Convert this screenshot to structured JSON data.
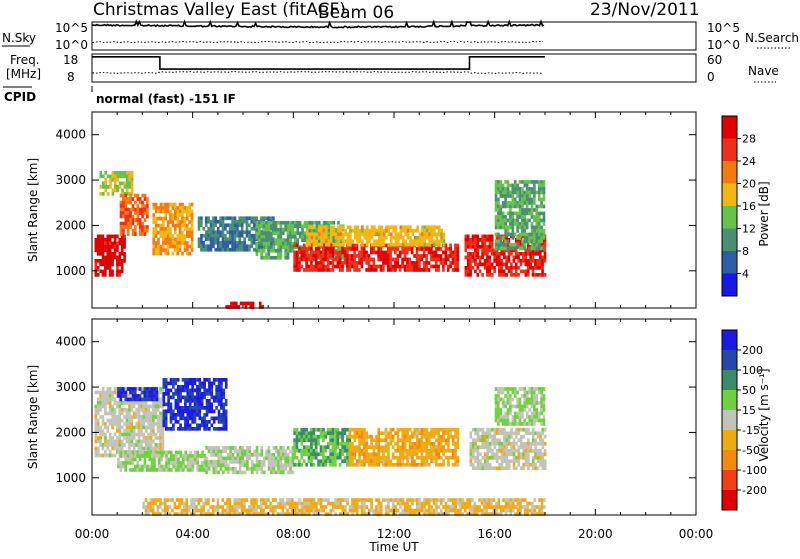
{
  "header": {
    "title": "Christmas Valley East (fitACF)",
    "beam": "Beam 06",
    "date": "23/Nov/2011"
  },
  "top_panels": {
    "nsky_label": "N.Sky",
    "nsky_ticks": [
      "10^5",
      "10^0"
    ],
    "nsearch_label": "N.Search",
    "nsearch_ticks": [
      "10^5",
      "10^0"
    ],
    "freq_label_line1": "Freq.",
    "freq_label_line2": "[MHz]",
    "freq_ticks": [
      "18",
      "8"
    ],
    "nave_label": "Nave",
    "nave_ticks": [
      "60",
      "0"
    ],
    "cpid_label": "CPID",
    "cpid_text": "normal (fast) -151 IF"
  },
  "axes": {
    "ylabel": "Slant Range [km]",
    "xlabel": "Time UT",
    "yticks": [
      "1000",
      "2000",
      "3000",
      "4000"
    ],
    "xticks": [
      "00:00",
      "04:00",
      "08:00",
      "12:00",
      "16:00",
      "20:00",
      "00:00"
    ]
  },
  "colorbars": {
    "power_title": "Power [dB]",
    "power_ticks": [
      "4",
      "8",
      "12",
      "16",
      "20",
      "24",
      "28"
    ],
    "power_colors": [
      "#1717e8",
      "#2c5ea8",
      "#4b8f72",
      "#66c24a",
      "#f3b614",
      "#f4790f",
      "#ee2f1a",
      "#e00000"
    ],
    "velocity_title": "Velocity [m s⁻¹]",
    "velocity_ticks": [
      "-200",
      "-100",
      "-50",
      "-15",
      "15",
      "50",
      "100",
      "200"
    ],
    "velocity_colors": [
      "#e00000",
      "#f23e12",
      "#f28a10",
      "#efab12",
      "#c4c3b8",
      "#6fd13f",
      "#3a8a6e",
      "#2547a9",
      "#1b1be3"
    ]
  },
  "chart_data": [
    {
      "type": "line",
      "panel": "N.Sky / N.Search",
      "x_range_hours": [
        0,
        24
      ],
      "series": [
        {
          "name": "N.Sky",
          "x": [
            0,
            4,
            8,
            12,
            16,
            18
          ],
          "values": [
            100000,
            60000,
            40000,
            40000,
            80000,
            100000
          ]
        }
      ]
    },
    {
      "type": "line",
      "panel": "Freq. / Nave",
      "x_range_hours": [
        0,
        24
      ],
      "ylim": [
        8,
        18
      ],
      "series": [
        {
          "name": "Freq.",
          "x": [
            0,
            2.7,
            2.7,
            15,
            15,
            18
          ],
          "values": [
            17,
            17,
            12.6,
            12.6,
            17,
            17
          ]
        }
      ]
    },
    {
      "type": "heatmap",
      "title": "Power [dB]",
      "xlabel": "Time UT",
      "ylabel": "Slant Range [km]",
      "x_range_hours": [
        0,
        24
      ],
      "ylim": [
        180,
        4500
      ],
      "clim": [
        0,
        32
      ],
      "regions": [
        {
          "x": [
            0.1,
            1.3
          ],
          "y": [
            900,
            1800
          ],
          "value": 30
        },
        {
          "x": [
            0.3,
            1.6
          ],
          "y": [
            2700,
            3200
          ],
          "value": 16
        },
        {
          "x": [
            1.1,
            2.2
          ],
          "y": [
            1800,
            2700
          ],
          "value": 24
        },
        {
          "x": [
            2.4,
            4.0
          ],
          "y": [
            1400,
            2500
          ],
          "value": 20
        },
        {
          "x": [
            4.2,
            7.2
          ],
          "y": [
            1500,
            2200
          ],
          "value": 8
        },
        {
          "x": [
            6.5,
            10.0
          ],
          "y": [
            1300,
            2100
          ],
          "value": 12
        },
        {
          "x": [
            8.0,
            14.5
          ],
          "y": [
            1000,
            1600
          ],
          "value": 28
        },
        {
          "x": [
            8.5,
            14.0
          ],
          "y": [
            1600,
            2000
          ],
          "value": 18
        },
        {
          "x": [
            14.8,
            18.0
          ],
          "y": [
            900,
            1800
          ],
          "value": 28
        },
        {
          "x": [
            16.0,
            18.0
          ],
          "y": [
            1500,
            3000
          ],
          "value": 12
        },
        {
          "x": [
            5.3,
            6.8
          ],
          "y": [
            180,
            320
          ],
          "value": 30
        }
      ]
    },
    {
      "type": "heatmap",
      "title": "Velocity [m s⁻¹]",
      "xlabel": "Time UT",
      "ylabel": "Slant Range [km]",
      "x_range_hours": [
        0,
        24
      ],
      "ylim": [
        180,
        4500
      ],
      "clim": [
        -250,
        250
      ],
      "regions": [
        {
          "x": [
            0.1,
            2.8
          ],
          "y": [
            1500,
            3000
          ],
          "value": 0
        },
        {
          "x": [
            1.0,
            2.6
          ],
          "y": [
            2700,
            3000
          ],
          "value": 200
        },
        {
          "x": [
            2.8,
            5.3
          ],
          "y": [
            2100,
            3200
          ],
          "value": 200
        },
        {
          "x": [
            1.0,
            4.5
          ],
          "y": [
            1200,
            1600
          ],
          "value": 40
        },
        {
          "x": [
            4.5,
            8.0
          ],
          "y": [
            1100,
            1700
          ],
          "value": 20
        },
        {
          "x": [
            8.0,
            10.2
          ],
          "y": [
            1300,
            2100
          ],
          "value": 80
        },
        {
          "x": [
            10.2,
            14.5
          ],
          "y": [
            1300,
            2100
          ],
          "value": -60
        },
        {
          "x": [
            15.0,
            18.0
          ],
          "y": [
            1200,
            2100
          ],
          "value": 0
        },
        {
          "x": [
            2.0,
            18.0
          ],
          "y": [
            200,
            550
          ],
          "value": -40
        },
        {
          "x": [
            16.0,
            18.0
          ],
          "y": [
            2200,
            3000
          ],
          "value": 30
        }
      ]
    }
  ]
}
